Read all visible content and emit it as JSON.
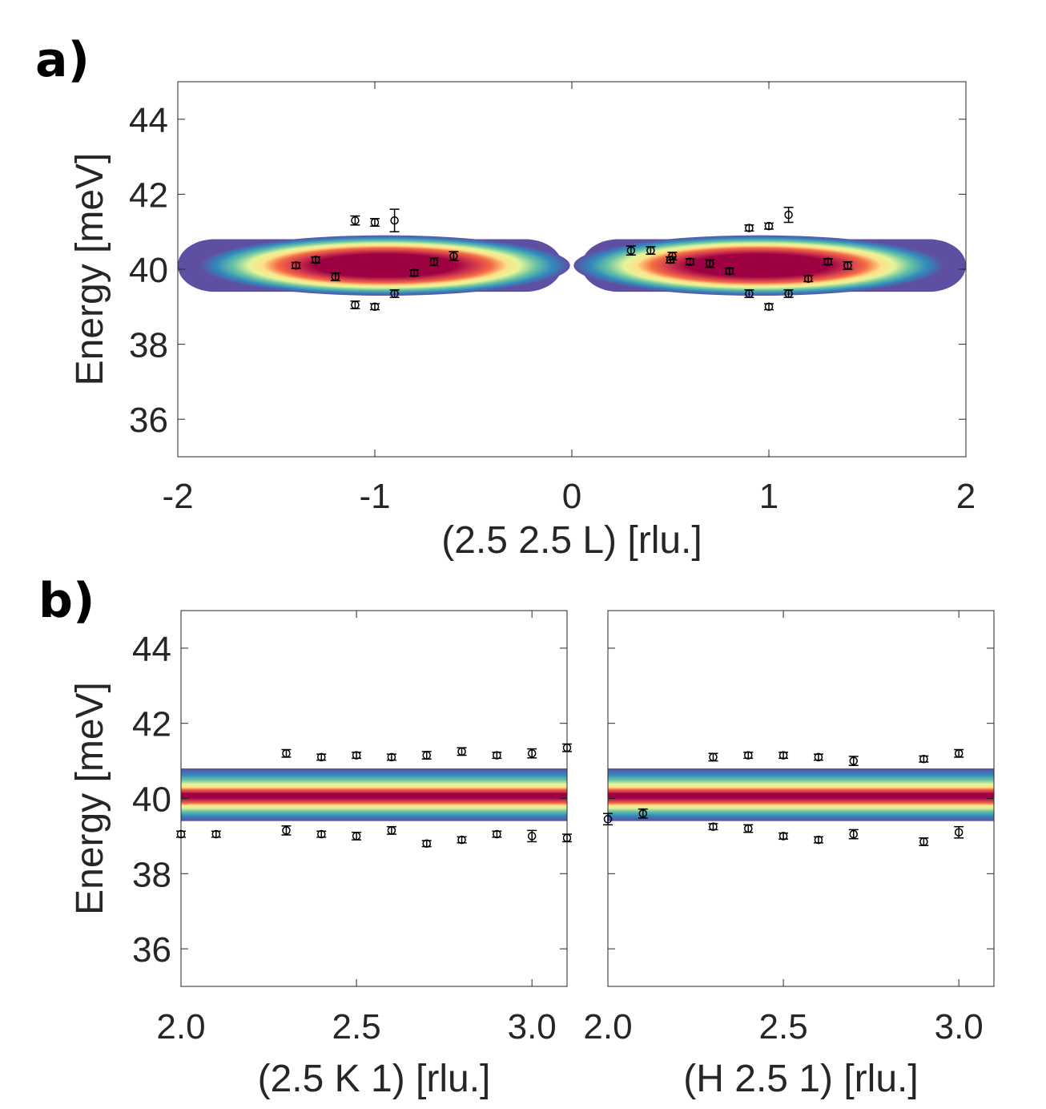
{
  "chart_data": [
    {
      "id": "a",
      "panel_label": "a)",
      "type": "heatmap",
      "xlabel": "(2.5 2.5 L) [rlu.]",
      "ylabel": "Energy [meV]",
      "xlim": [
        -2,
        2
      ],
      "ylim": [
        35,
        45
      ],
      "xticks": [
        -2,
        -1,
        0,
        1,
        2
      ],
      "xtick_labels": [
        "-2",
        "-1",
        "0",
        "1",
        "2"
      ],
      "yticks": [
        36,
        38,
        40,
        42,
        44
      ],
      "ytick_labels": [
        "36",
        "38",
        "40",
        "42",
        "44"
      ],
      "grid": false,
      "colormap": "Spectral (reversed: blue low, dark red high)",
      "intensity_bands": [
        {
          "x_range": [
            -2,
            -0.05
          ],
          "center_x": -0.95,
          "center_energy": 40.1,
          "energy_halfwidth": 0.7
        },
        {
          "x_range": [
            0.05,
            2
          ],
          "center_x": 0.95,
          "center_energy": 40.1,
          "energy_halfwidth": 0.7
        }
      ],
      "points": [
        {
          "x": -1.4,
          "y": 40.1,
          "err": 0.08
        },
        {
          "x": -1.3,
          "y": 40.25,
          "err": 0.08
        },
        {
          "x": -1.2,
          "y": 39.8,
          "err": 0.1
        },
        {
          "x": -1.1,
          "y": 41.3,
          "err": 0.12
        },
        {
          "x": -1.1,
          "y": 39.05,
          "err": 0.1
        },
        {
          "x": -1.0,
          "y": 41.25,
          "err": 0.1
        },
        {
          "x": -1.0,
          "y": 39.0,
          "err": 0.08
        },
        {
          "x": -0.9,
          "y": 41.3,
          "err": 0.3
        },
        {
          "x": -0.9,
          "y": 39.35,
          "err": 0.1
        },
        {
          "x": -0.8,
          "y": 39.9,
          "err": 0.08
        },
        {
          "x": -0.7,
          "y": 40.2,
          "err": 0.1
        },
        {
          "x": -0.6,
          "y": 40.35,
          "err": 0.12
        },
        {
          "x": 0.3,
          "y": 40.5,
          "err": 0.12
        },
        {
          "x": 0.4,
          "y": 40.5,
          "err": 0.1
        },
        {
          "x": 0.5,
          "y": 40.25,
          "err": 0.08
        },
        {
          "x": 0.51,
          "y": 40.35,
          "err": 0.1
        },
        {
          "x": 0.6,
          "y": 40.2,
          "err": 0.08
        },
        {
          "x": 0.7,
          "y": 40.15,
          "err": 0.1
        },
        {
          "x": 0.8,
          "y": 39.95,
          "err": 0.08
        },
        {
          "x": 0.9,
          "y": 41.1,
          "err": 0.08
        },
        {
          "x": 0.9,
          "y": 39.35,
          "err": 0.1
        },
        {
          "x": 1.0,
          "y": 41.15,
          "err": 0.08
        },
        {
          "x": 1.0,
          "y": 39.0,
          "err": 0.08
        },
        {
          "x": 1.1,
          "y": 41.45,
          "err": 0.2
        },
        {
          "x": 1.1,
          "y": 39.35,
          "err": 0.1
        },
        {
          "x": 1.2,
          "y": 39.75,
          "err": 0.08
        },
        {
          "x": 1.3,
          "y": 40.2,
          "err": 0.08
        },
        {
          "x": 1.4,
          "y": 40.1,
          "err": 0.1
        }
      ]
    },
    {
      "id": "b-left",
      "panel_label": "b)",
      "type": "heatmap",
      "xlabel": "(2.5 K 1) [rlu.]",
      "ylabel": "Energy [meV]",
      "xlim": [
        2.0,
        3.1
      ],
      "ylim": [
        35,
        45
      ],
      "xticks": [
        2.0,
        2.5,
        3.0
      ],
      "xtick_labels": [
        "2.0",
        "2.5",
        "3.0"
      ],
      "yticks": [
        36,
        38,
        40,
        42,
        44
      ],
      "ytick_labels": [
        "36",
        "38",
        "40",
        "42",
        "44"
      ],
      "grid": false,
      "colormap": "Spectral (reversed: blue low, dark red high)",
      "intensity_bands": [
        {
          "x_range": [
            2.0,
            3.1
          ],
          "center_x": null,
          "center_energy": 40.1,
          "energy_halfwidth": 0.7
        }
      ],
      "points": [
        {
          "x": 2.0,
          "y": 39.05,
          "err": 0.08
        },
        {
          "x": 2.1,
          "y": 39.05,
          "err": 0.08
        },
        {
          "x": 2.3,
          "y": 41.2,
          "err": 0.1
        },
        {
          "x": 2.3,
          "y": 39.15,
          "err": 0.12
        },
        {
          "x": 2.4,
          "y": 41.1,
          "err": 0.08
        },
        {
          "x": 2.4,
          "y": 39.05,
          "err": 0.08
        },
        {
          "x": 2.5,
          "y": 41.15,
          "err": 0.08
        },
        {
          "x": 2.5,
          "y": 39.0,
          "err": 0.1
        },
        {
          "x": 2.6,
          "y": 41.1,
          "err": 0.08
        },
        {
          "x": 2.6,
          "y": 39.15,
          "err": 0.1
        },
        {
          "x": 2.7,
          "y": 41.15,
          "err": 0.1
        },
        {
          "x": 2.7,
          "y": 38.8,
          "err": 0.08
        },
        {
          "x": 2.8,
          "y": 41.25,
          "err": 0.1
        },
        {
          "x": 2.8,
          "y": 38.9,
          "err": 0.08
        },
        {
          "x": 2.9,
          "y": 41.15,
          "err": 0.08
        },
        {
          "x": 2.9,
          "y": 39.05,
          "err": 0.08
        },
        {
          "x": 3.0,
          "y": 41.2,
          "err": 0.12
        },
        {
          "x": 3.0,
          "y": 39.0,
          "err": 0.15
        },
        {
          "x": 3.1,
          "y": 41.35,
          "err": 0.1
        },
        {
          "x": 3.1,
          "y": 38.95,
          "err": 0.1
        }
      ]
    },
    {
      "id": "b-right",
      "panel_label": "",
      "type": "heatmap",
      "xlabel": "(H 2.5 1) [rlu.]",
      "ylabel": "",
      "xlim": [
        2.0,
        3.1
      ],
      "ylim": [
        35,
        45
      ],
      "xticks": [
        2.0,
        2.5,
        3.0
      ],
      "xtick_labels": [
        "2.0",
        "2.5",
        "3.0"
      ],
      "yticks": [
        36,
        38,
        40,
        42,
        44
      ],
      "ytick_labels": [],
      "grid": false,
      "colormap": "Spectral (reversed: blue low, dark red high)",
      "intensity_bands": [
        {
          "x_range": [
            2.0,
            3.1
          ],
          "center_x": null,
          "center_energy": 40.1,
          "energy_halfwidth": 0.7
        }
      ],
      "points": [
        {
          "x": 2.0,
          "y": 39.45,
          "err": 0.15
        },
        {
          "x": 2.1,
          "y": 39.6,
          "err": 0.12
        },
        {
          "x": 2.3,
          "y": 41.1,
          "err": 0.1
        },
        {
          "x": 2.3,
          "y": 39.25,
          "err": 0.08
        },
        {
          "x": 2.4,
          "y": 41.15,
          "err": 0.08
        },
        {
          "x": 2.4,
          "y": 39.2,
          "err": 0.1
        },
        {
          "x": 2.5,
          "y": 41.15,
          "err": 0.08
        },
        {
          "x": 2.5,
          "y": 39.0,
          "err": 0.08
        },
        {
          "x": 2.6,
          "y": 41.1,
          "err": 0.08
        },
        {
          "x": 2.6,
          "y": 38.9,
          "err": 0.08
        },
        {
          "x": 2.7,
          "y": 41.0,
          "err": 0.12
        },
        {
          "x": 2.7,
          "y": 39.05,
          "err": 0.12
        },
        {
          "x": 2.9,
          "y": 41.05,
          "err": 0.08
        },
        {
          "x": 2.9,
          "y": 38.85,
          "err": 0.1
        },
        {
          "x": 3.0,
          "y": 41.2,
          "err": 0.1
        },
        {
          "x": 3.0,
          "y": 39.1,
          "err": 0.15
        }
      ]
    }
  ]
}
